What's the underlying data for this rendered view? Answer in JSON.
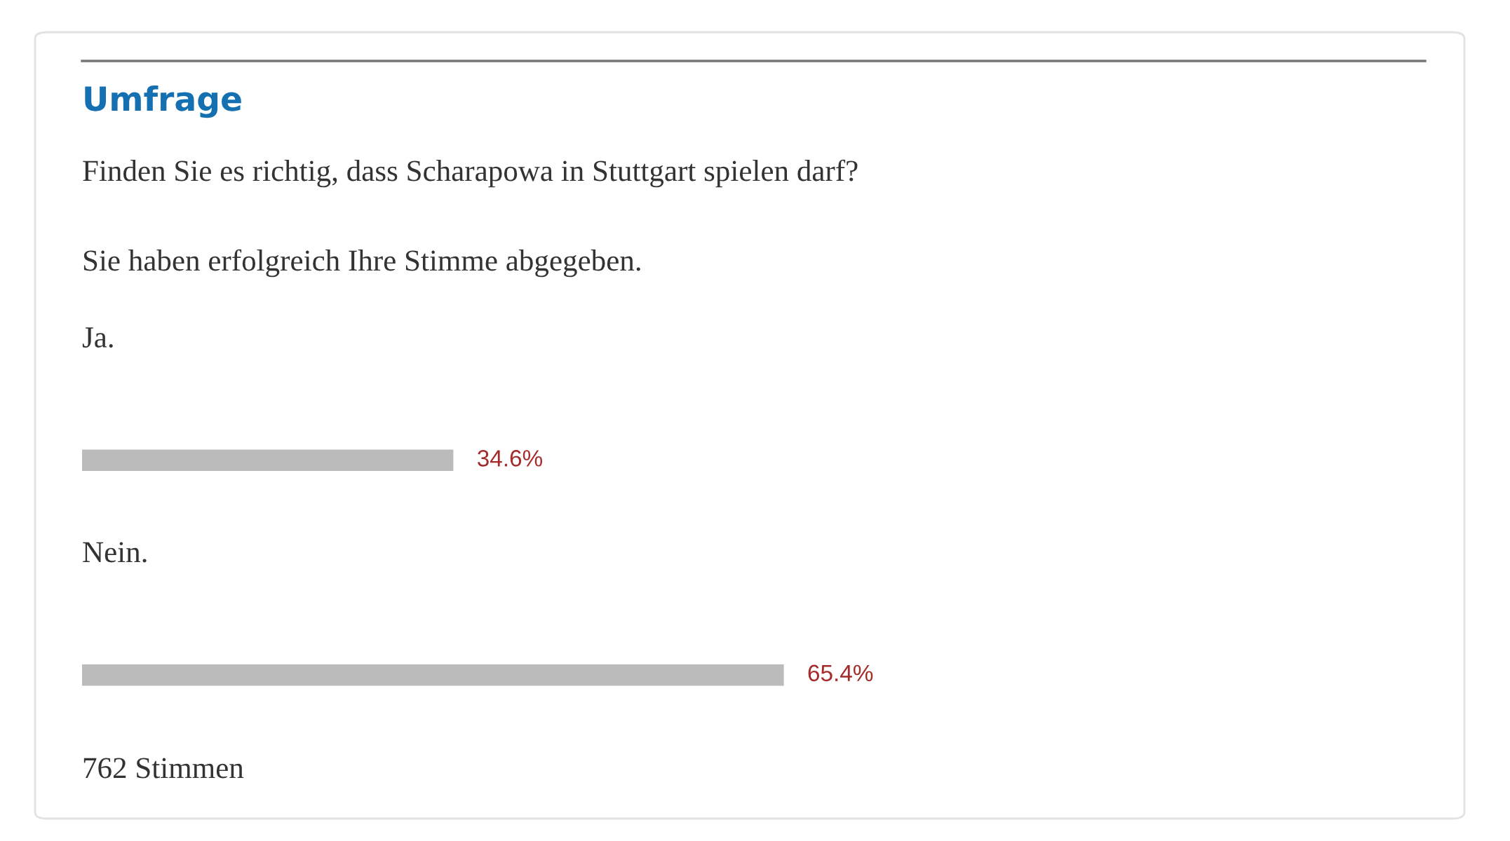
{
  "chart_data": {
    "type": "bar",
    "orientation": "horizontal",
    "title": "Umfrage",
    "subtitle": "Finden Sie es richtig, dass Scharapowa in Stuttgart spielen darf?",
    "annotations": [
      "Sie haben erfolgreich Ihre Stimme abgegeben.",
      "762 Stimmen"
    ],
    "categories": [
      "Ja.",
      "Nein."
    ],
    "values": [
      34.6,
      65.4
    ],
    "color": "#bbbbbb",
    "value_labels": [
      "34.6%",
      "65.4%"
    ]
  }
}
